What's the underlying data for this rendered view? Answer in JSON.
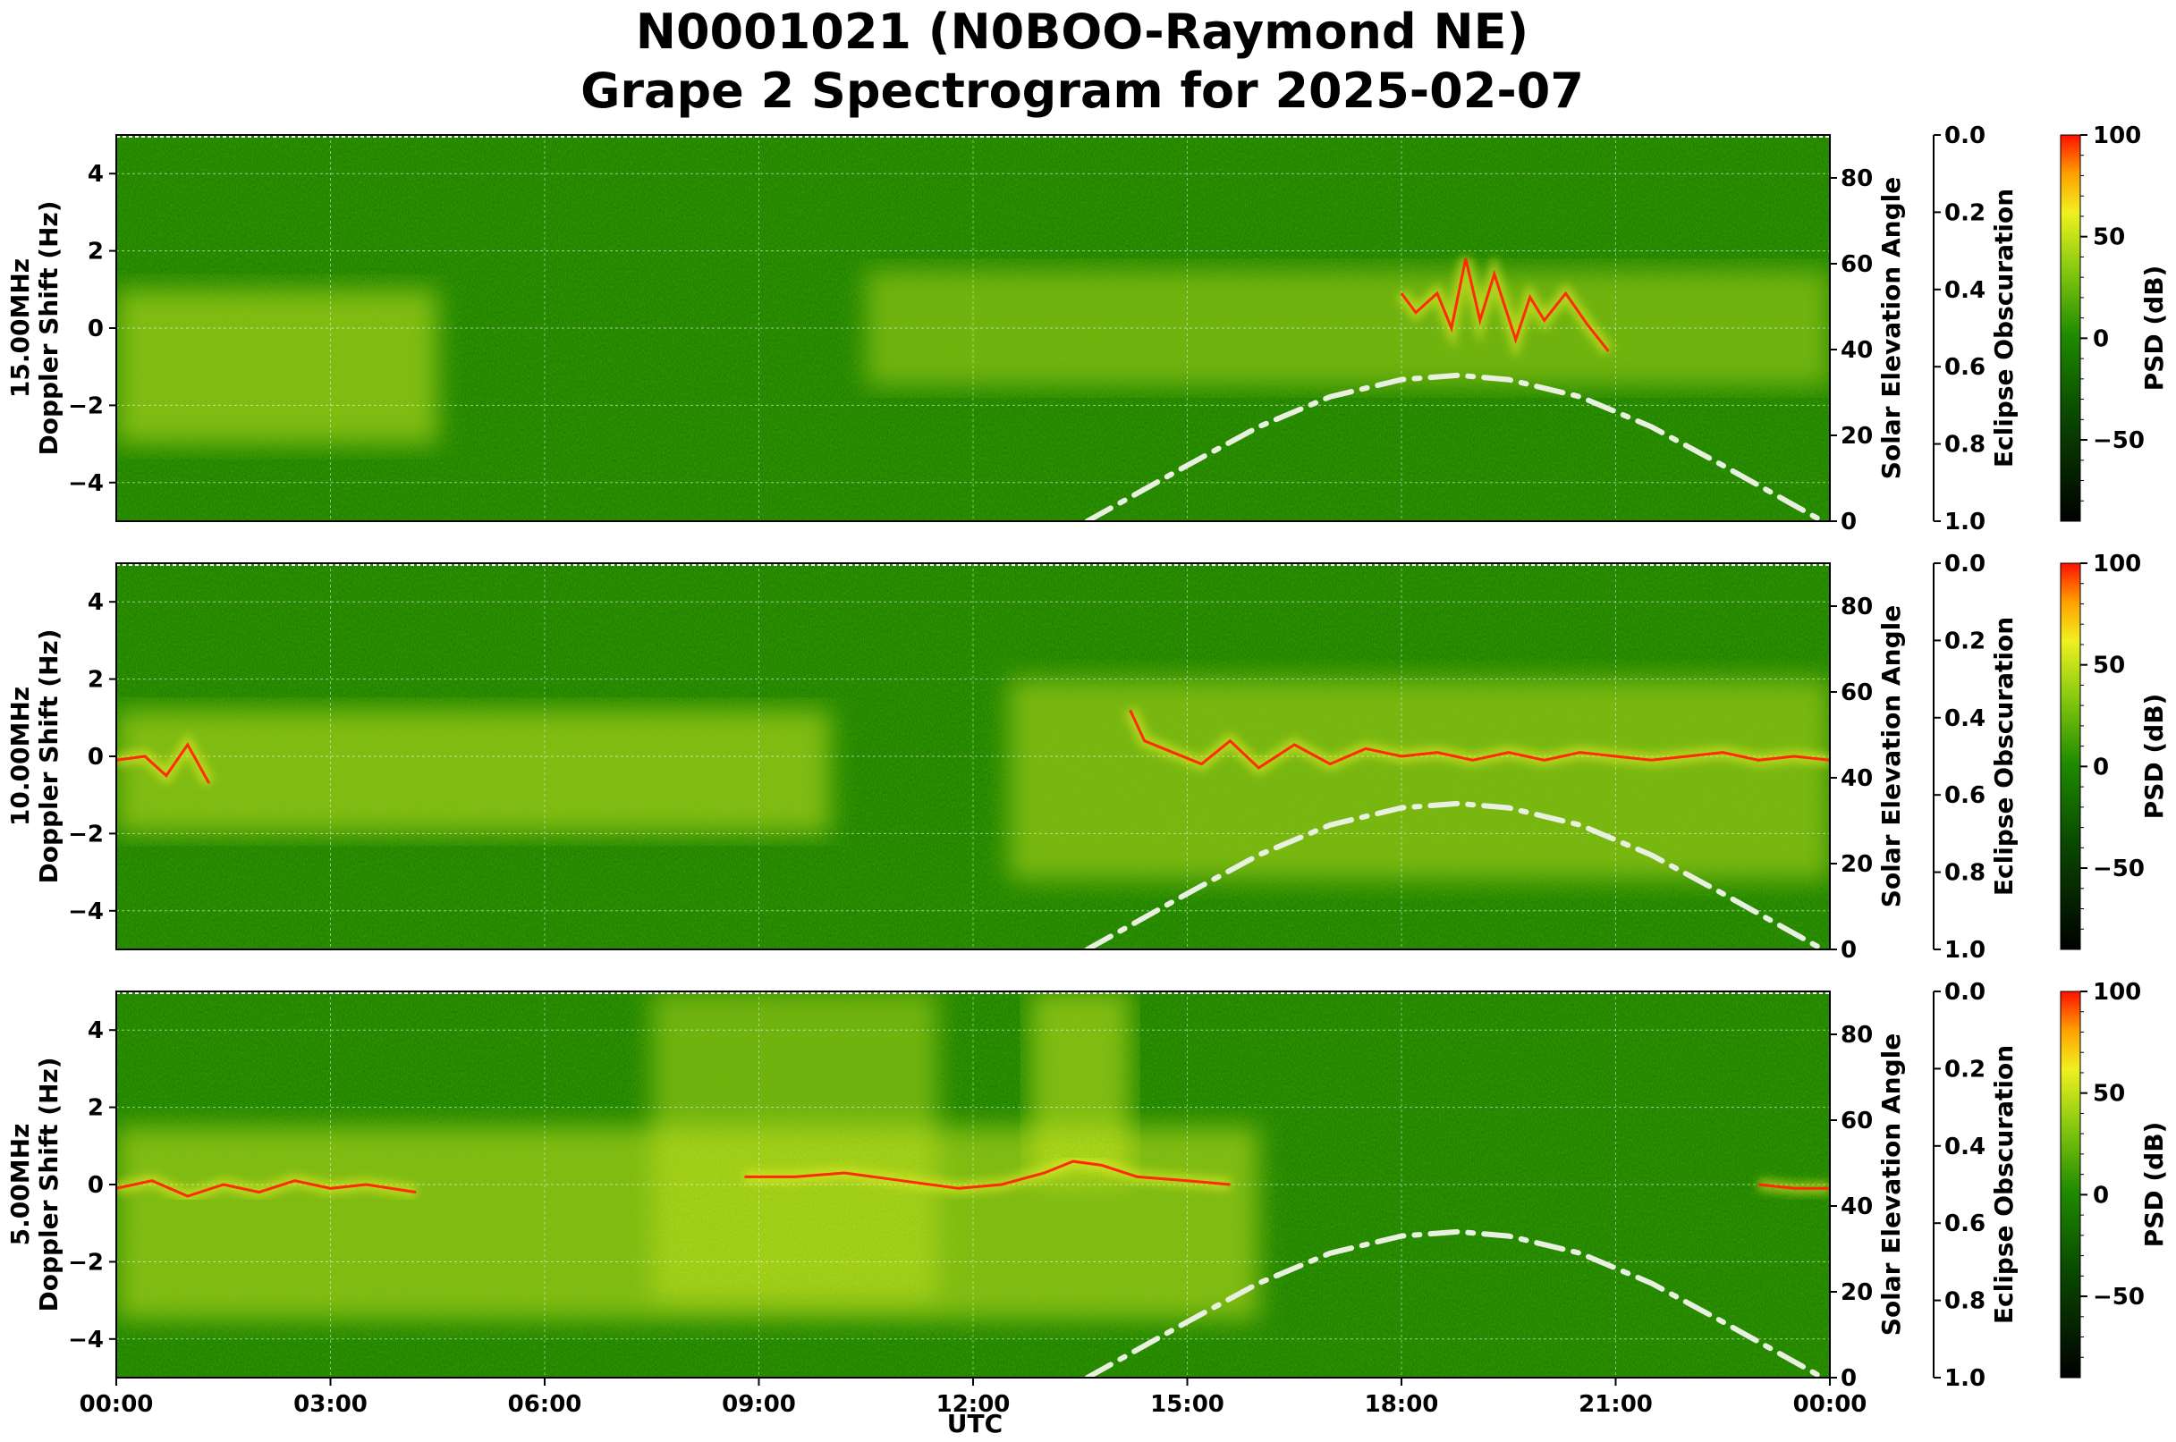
{
  "title_line1": "N0001021 (N0BOO-Raymond NE)",
  "title_line2": "Grape 2 Spectrogram for 2025-02-07",
  "xlabel": "UTC",
  "x_ticks": [
    "00:00",
    "03:00",
    "06:00",
    "09:00",
    "12:00",
    "15:00",
    "18:00",
    "21:00",
    "00:00"
  ],
  "colors": {
    "background_green": "#1f8a00",
    "dark_green": "#0f5a00",
    "yellow": "#e8ee2a",
    "red": "#ff2a00",
    "solar_curve": "#e8f0e0",
    "grid": "#ffffff"
  },
  "chart_data": [
    {
      "type": "heatmap",
      "frequency_label": "15.00MHz",
      "ylabel": "15.00MHz\nDoppler Shift (Hz)",
      "ylabel_lines": [
        "15.00MHz",
        "Doppler Shift (Hz)"
      ],
      "x_range_hours": [
        0,
        24
      ],
      "ylim": [
        -5,
        5
      ],
      "y_ticks": [
        "4",
        "2",
        "0",
        "−2",
        "−4"
      ],
      "y_tick_values": [
        4,
        2,
        0,
        -2,
        -4
      ],
      "grid": true,
      "right_axis_label": "Solar Elevation Angle",
      "right_axis_ticks": [
        "0",
        "20",
        "40",
        "60",
        "80"
      ],
      "right_axis_tick_values": [
        0,
        20,
        40,
        60,
        80
      ],
      "right_axis_range": [
        0,
        90
      ],
      "eclipse_label": "Eclipse Obscuration",
      "eclipse_ticks": [
        "0.0",
        "0.2",
        "0.4",
        "0.6",
        "0.8",
        "1.0"
      ],
      "colorbar_label": "PSD (dB)",
      "colorbar_ticks": [
        "100",
        "50",
        "0",
        "−50"
      ],
      "colorbar_tick_values": [
        100,
        50,
        0,
        -50
      ],
      "colorbar_range": [
        -90,
        100
      ],
      "solar_elevation_curve": [
        {
          "hour": 13.6,
          "elev": 0
        },
        {
          "hour": 15.0,
          "elev": 13
        },
        {
          "hour": 16.0,
          "elev": 22
        },
        {
          "hour": 17.0,
          "elev": 29
        },
        {
          "hour": 18.0,
          "elev": 33
        },
        {
          "hour": 18.8,
          "elev": 34
        },
        {
          "hour": 19.5,
          "elev": 33
        },
        {
          "hour": 20.5,
          "elev": 29
        },
        {
          "hour": 21.5,
          "elev": 22
        },
        {
          "hour": 22.5,
          "elev": 13
        },
        {
          "hour": 23.9,
          "elev": 0
        }
      ],
      "doppler_trace": [
        {
          "hour": 18.0,
          "hz": 0.9
        },
        {
          "hour": 18.2,
          "hz": 0.4
        },
        {
          "hour": 18.5,
          "hz": 0.9
        },
        {
          "hour": 18.7,
          "hz": 0.0
        },
        {
          "hour": 18.9,
          "hz": 1.8
        },
        {
          "hour": 19.1,
          "hz": 0.2
        },
        {
          "hour": 19.3,
          "hz": 1.4
        },
        {
          "hour": 19.6,
          "hz": -0.3
        },
        {
          "hour": 19.8,
          "hz": 0.8
        },
        {
          "hour": 20.0,
          "hz": 0.2
        },
        {
          "hour": 20.3,
          "hz": 0.9
        },
        {
          "hour": 20.6,
          "hz": 0.1
        },
        {
          "hour": 20.9,
          "hz": -0.6
        }
      ]
    },
    {
      "type": "heatmap",
      "frequency_label": "10.00MHz",
      "ylabel_lines": [
        "10.00MHz",
        "Doppler Shift (Hz)"
      ],
      "x_range_hours": [
        0,
        24
      ],
      "ylim": [
        -5,
        5
      ],
      "y_ticks": [
        "4",
        "2",
        "0",
        "−2",
        "−4"
      ],
      "y_tick_values": [
        4,
        2,
        0,
        -2,
        -4
      ],
      "grid": true,
      "right_axis_label": "Solar Elevation Angle",
      "right_axis_ticks": [
        "0",
        "20",
        "40",
        "60",
        "80"
      ],
      "right_axis_tick_values": [
        0,
        20,
        40,
        60,
        80
      ],
      "right_axis_range": [
        0,
        90
      ],
      "eclipse_label": "Eclipse Obscuration",
      "eclipse_ticks": [
        "0.0",
        "0.2",
        "0.4",
        "0.6",
        "0.8",
        "1.0"
      ],
      "colorbar_label": "PSD (dB)",
      "colorbar_ticks": [
        "100",
        "50",
        "0",
        "−50"
      ],
      "colorbar_tick_values": [
        100,
        50,
        0,
        -50
      ],
      "colorbar_range": [
        -90,
        100
      ],
      "solar_elevation_curve": [
        {
          "hour": 13.6,
          "elev": 0
        },
        {
          "hour": 15.0,
          "elev": 13
        },
        {
          "hour": 16.0,
          "elev": 22
        },
        {
          "hour": 17.0,
          "elev": 29
        },
        {
          "hour": 18.0,
          "elev": 33
        },
        {
          "hour": 18.8,
          "elev": 34
        },
        {
          "hour": 19.5,
          "elev": 33
        },
        {
          "hour": 20.5,
          "elev": 29
        },
        {
          "hour": 21.5,
          "elev": 22
        },
        {
          "hour": 22.5,
          "elev": 13
        },
        {
          "hour": 23.9,
          "elev": 0
        }
      ],
      "doppler_trace": [
        {
          "hour": 0.0,
          "hz": -0.1
        },
        {
          "hour": 0.4,
          "hz": 0.0
        },
        {
          "hour": 0.7,
          "hz": -0.5
        },
        {
          "hour": 1.0,
          "hz": 0.3
        },
        {
          "hour": 1.3,
          "hz": -0.7
        },
        {
          "hour": 14.2,
          "hz": 1.2
        },
        {
          "hour": 14.4,
          "hz": 0.4
        },
        {
          "hour": 14.8,
          "hz": 0.1
        },
        {
          "hour": 15.2,
          "hz": -0.2
        },
        {
          "hour": 15.6,
          "hz": 0.4
        },
        {
          "hour": 16.0,
          "hz": -0.3
        },
        {
          "hour": 16.5,
          "hz": 0.3
        },
        {
          "hour": 17.0,
          "hz": -0.2
        },
        {
          "hour": 17.5,
          "hz": 0.2
        },
        {
          "hour": 18.0,
          "hz": 0.0
        },
        {
          "hour": 18.5,
          "hz": 0.1
        },
        {
          "hour": 19.0,
          "hz": -0.1
        },
        {
          "hour": 19.5,
          "hz": 0.1
        },
        {
          "hour": 20.0,
          "hz": -0.1
        },
        {
          "hour": 20.5,
          "hz": 0.1
        },
        {
          "hour": 21.0,
          "hz": 0.0
        },
        {
          "hour": 21.5,
          "hz": -0.1
        },
        {
          "hour": 22.0,
          "hz": 0.0
        },
        {
          "hour": 22.5,
          "hz": 0.1
        },
        {
          "hour": 23.0,
          "hz": -0.1
        },
        {
          "hour": 23.5,
          "hz": 0.0
        },
        {
          "hour": 24.0,
          "hz": -0.1
        }
      ]
    },
    {
      "type": "heatmap",
      "frequency_label": "5.00MHz",
      "ylabel_lines": [
        "5.00MHz",
        "Doppler Shift (Hz)"
      ],
      "x_range_hours": [
        0,
        24
      ],
      "ylim": [
        -5,
        5
      ],
      "y_ticks": [
        "4",
        "2",
        "0",
        "−2",
        "−4"
      ],
      "y_tick_values": [
        4,
        2,
        0,
        -2,
        -4
      ],
      "grid": true,
      "right_axis_label": "Solar Elevation Angle",
      "right_axis_ticks": [
        "0",
        "20",
        "40",
        "60",
        "80"
      ],
      "right_axis_tick_values": [
        0,
        20,
        40,
        60,
        80
      ],
      "right_axis_range": [
        0,
        90
      ],
      "eclipse_label": "Eclipse Obscuration",
      "eclipse_ticks": [
        "0.0",
        "0.2",
        "0.4",
        "0.6",
        "0.8",
        "1.0"
      ],
      "colorbar_label": "PSD (dB)",
      "colorbar_ticks": [
        "100",
        "50",
        "0",
        "−50"
      ],
      "colorbar_tick_values": [
        100,
        50,
        0,
        -50
      ],
      "colorbar_range": [
        -90,
        100
      ],
      "solar_elevation_curve": [
        {
          "hour": 13.6,
          "elev": 0
        },
        {
          "hour": 15.0,
          "elev": 13
        },
        {
          "hour": 16.0,
          "elev": 22
        },
        {
          "hour": 17.0,
          "elev": 29
        },
        {
          "hour": 18.0,
          "elev": 33
        },
        {
          "hour": 18.8,
          "elev": 34
        },
        {
          "hour": 19.5,
          "elev": 33
        },
        {
          "hour": 20.5,
          "elev": 29
        },
        {
          "hour": 21.5,
          "elev": 22
        },
        {
          "hour": 22.5,
          "elev": 13
        },
        {
          "hour": 23.9,
          "elev": 0
        }
      ],
      "doppler_trace": [
        {
          "hour": 0.0,
          "hz": -0.1
        },
        {
          "hour": 0.5,
          "hz": 0.1
        },
        {
          "hour": 1.0,
          "hz": -0.3
        },
        {
          "hour": 1.5,
          "hz": 0.0
        },
        {
          "hour": 2.0,
          "hz": -0.2
        },
        {
          "hour": 2.5,
          "hz": 0.1
        },
        {
          "hour": 3.0,
          "hz": -0.1
        },
        {
          "hour": 3.5,
          "hz": 0.0
        },
        {
          "hour": 4.2,
          "hz": -0.2
        },
        {
          "hour": 8.8,
          "hz": 0.2
        },
        {
          "hour": 9.5,
          "hz": 0.2
        },
        {
          "hour": 10.2,
          "hz": 0.3
        },
        {
          "hour": 11.0,
          "hz": 0.1
        },
        {
          "hour": 11.8,
          "hz": -0.1
        },
        {
          "hour": 12.4,
          "hz": 0.0
        },
        {
          "hour": 13.0,
          "hz": 0.3
        },
        {
          "hour": 13.4,
          "hz": 0.6
        },
        {
          "hour": 13.8,
          "hz": 0.5
        },
        {
          "hour": 14.3,
          "hz": 0.2
        },
        {
          "hour": 15.0,
          "hz": 0.1
        },
        {
          "hour": 15.6,
          "hz": 0.0
        },
        {
          "hour": 23.0,
          "hz": 0.0
        },
        {
          "hour": 23.5,
          "hz": -0.1
        },
        {
          "hour": 24.0,
          "hz": -0.1
        }
      ]
    }
  ]
}
